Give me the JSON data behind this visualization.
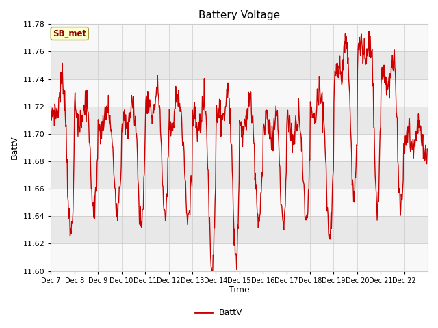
{
  "title": "Battery Voltage",
  "xlabel": "Time",
  "ylabel": "BattV",
  "ylim": [
    11.6,
    11.78
  ],
  "yticks": [
    11.6,
    11.62,
    11.64,
    11.66,
    11.68,
    11.7,
    11.72,
    11.74,
    11.76,
    11.78
  ],
  "xtick_labels": [
    "Dec 7",
    "Dec 8",
    "Dec 9",
    "Dec 10",
    "Dec 11",
    "Dec 12",
    "Dec 13",
    "Dec 14",
    "Dec 15",
    "Dec 16",
    "Dec 17",
    "Dec 18",
    "Dec 19",
    "Dec 20",
    "Dec 21",
    "Dec 22"
  ],
  "line_color": "#CC0000",
  "line_width": 1.0,
  "bg_color": "#ffffff",
  "plot_bg_color": "#ffffff",
  "legend_label": "BattV",
  "station_label": "SB_met",
  "station_box_facecolor": "#ffffcc",
  "station_box_edgecolor": "#999933",
  "station_text_color": "#880000",
  "band_color_dark": "#e8e8e8",
  "band_color_light": "#f8f8f8"
}
